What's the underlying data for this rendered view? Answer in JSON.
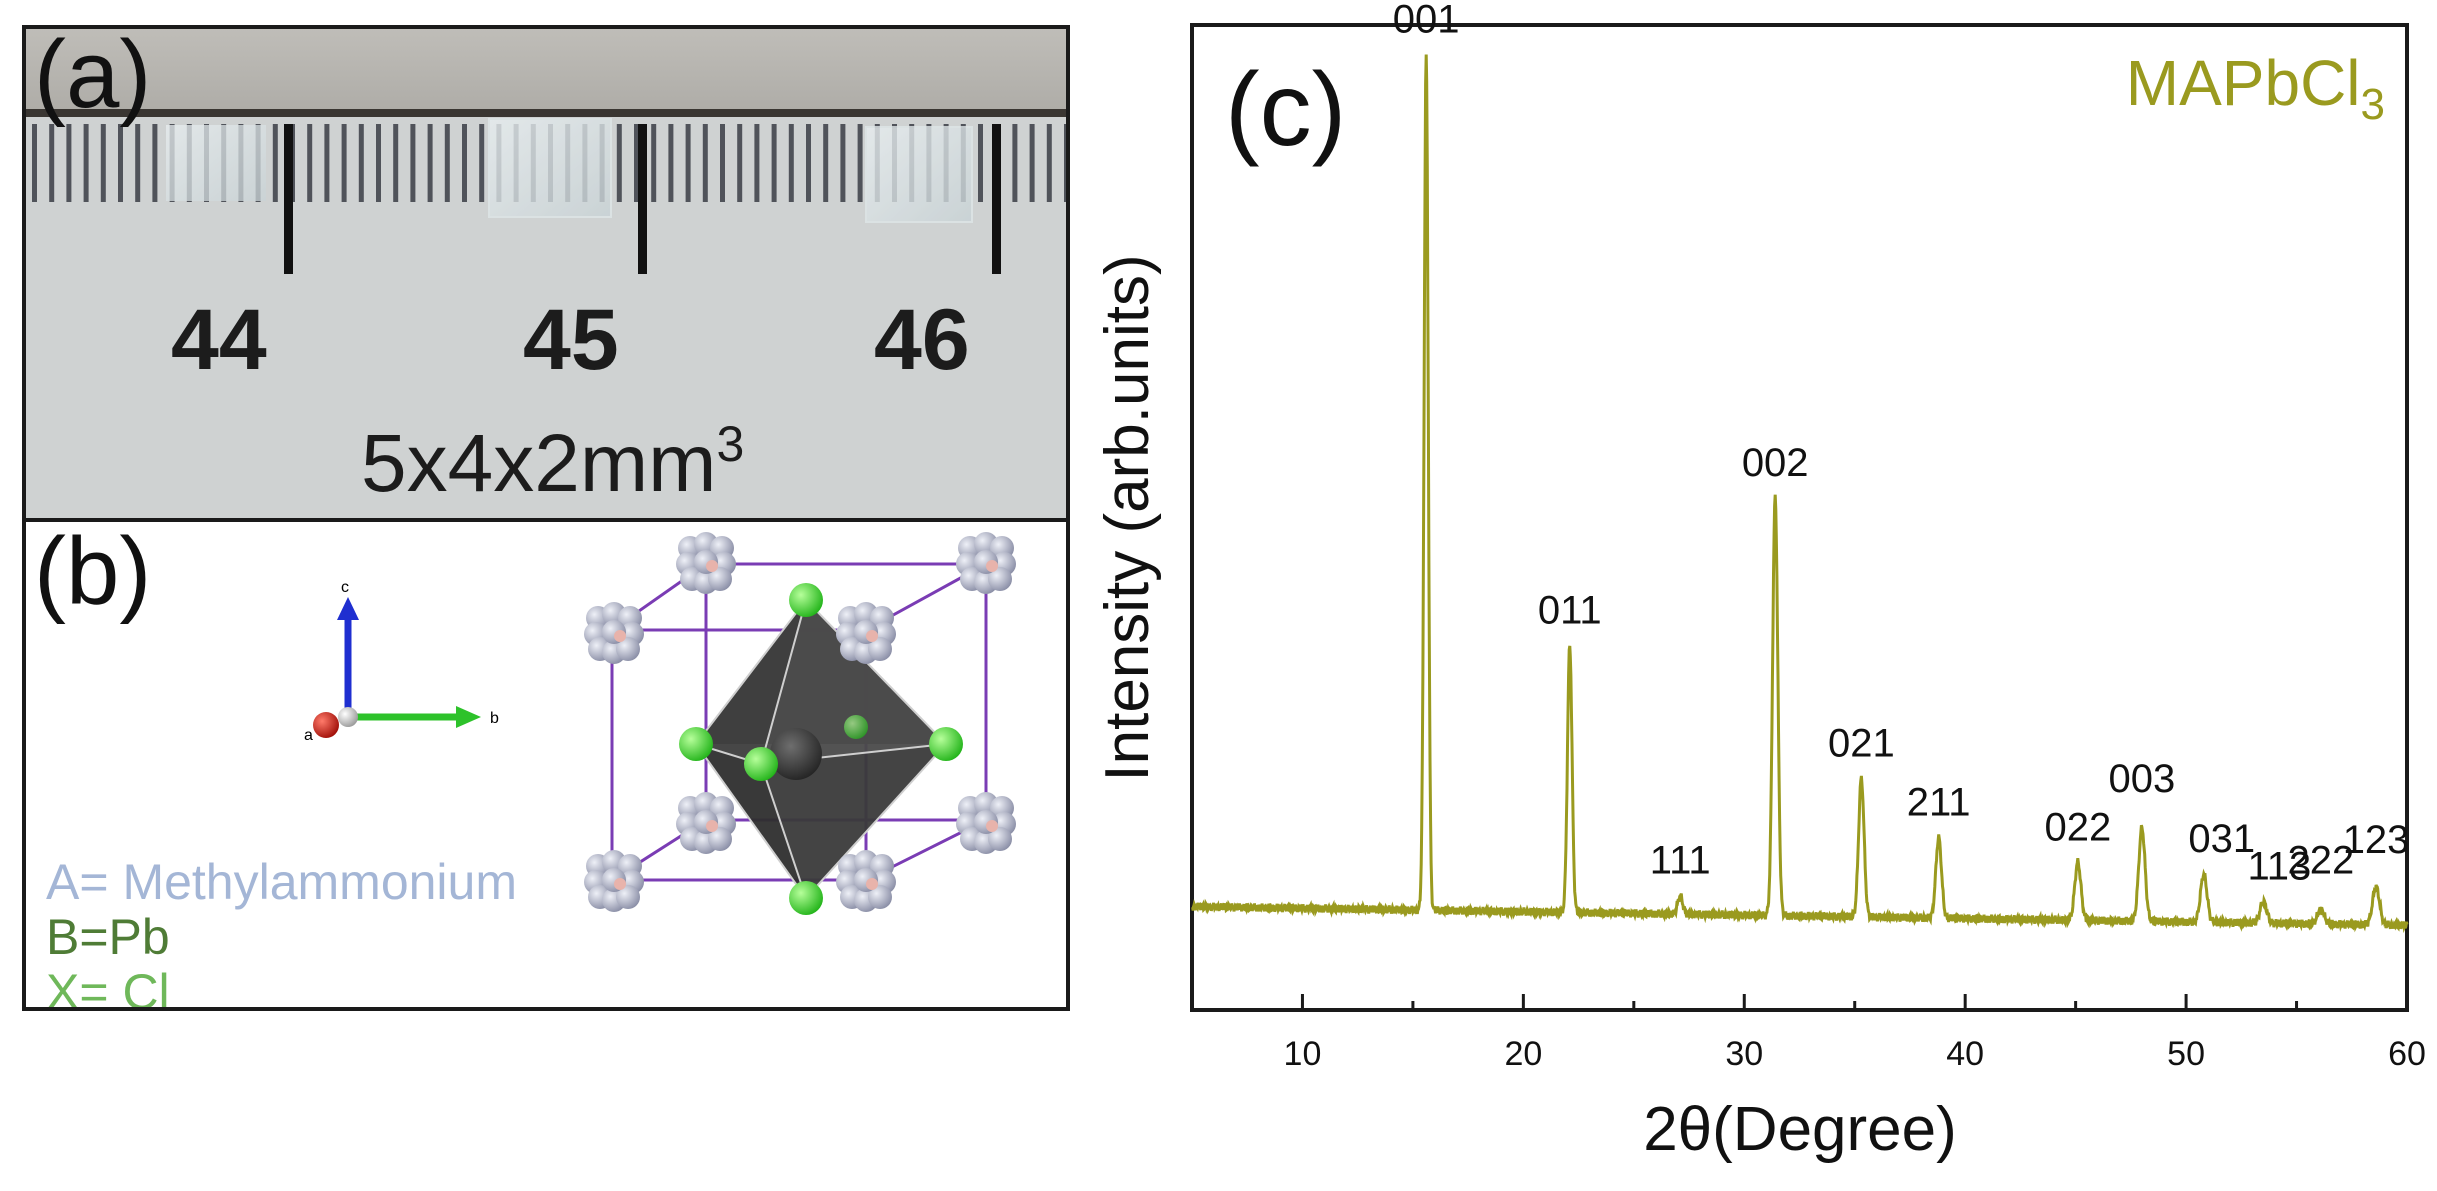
{
  "panel_a": {
    "label": "(a)",
    "ruler_numbers": [
      "44",
      "45",
      "46"
    ],
    "dimension": "5x4x2mm",
    "dimension_sup": "3"
  },
  "panel_b": {
    "label": "(b)",
    "axis_labels": {
      "c": "c",
      "a": "a",
      "b": "b"
    },
    "legend": [
      {
        "text": "A= Methylammonium",
        "color": "#a4b6d6"
      },
      {
        "text": "B=Pb",
        "color": "#4f7c36"
      },
      {
        "text": "X= Cl",
        "color": "#6fb85a"
      }
    ]
  },
  "chart_data": {
    "panel_label": "(c)",
    "type": "line",
    "title": "MAPbCl",
    "title_sub": "3",
    "xlabel": "2θ(Degree)",
    "ylabel": "Intensity (arb.units)",
    "xlim": [
      5,
      60
    ],
    "ylim": [
      0,
      100
    ],
    "xticks": [
      10,
      20,
      30,
      40,
      50,
      60
    ],
    "color": "#9a9a1f",
    "baseline": 10.5,
    "baseline_end": 8.6,
    "peaks": [
      {
        "x": 15.6,
        "y": 97,
        "label": "001"
      },
      {
        "x": 22.1,
        "y": 37,
        "label": "011"
      },
      {
        "x": 27.1,
        "y": 11.6,
        "label": "111"
      },
      {
        "x": 31.4,
        "y": 52,
        "label": "002"
      },
      {
        "x": 35.3,
        "y": 23.5,
        "label": "021"
      },
      {
        "x": 38.8,
        "y": 17.5,
        "label": "211"
      },
      {
        "x": 45.1,
        "y": 15,
        "label": "022"
      },
      {
        "x": 48.0,
        "y": 18.5,
        "label": "003"
      },
      {
        "x": 50.8,
        "y": 13.8,
        "label": "031"
      },
      {
        "x": 53.5,
        "y": 11,
        "label": "113"
      },
      {
        "x": 56.1,
        "y": 10.2,
        "label": "222"
      },
      {
        "x": 58.6,
        "y": 12.5,
        "label": "123"
      }
    ]
  }
}
